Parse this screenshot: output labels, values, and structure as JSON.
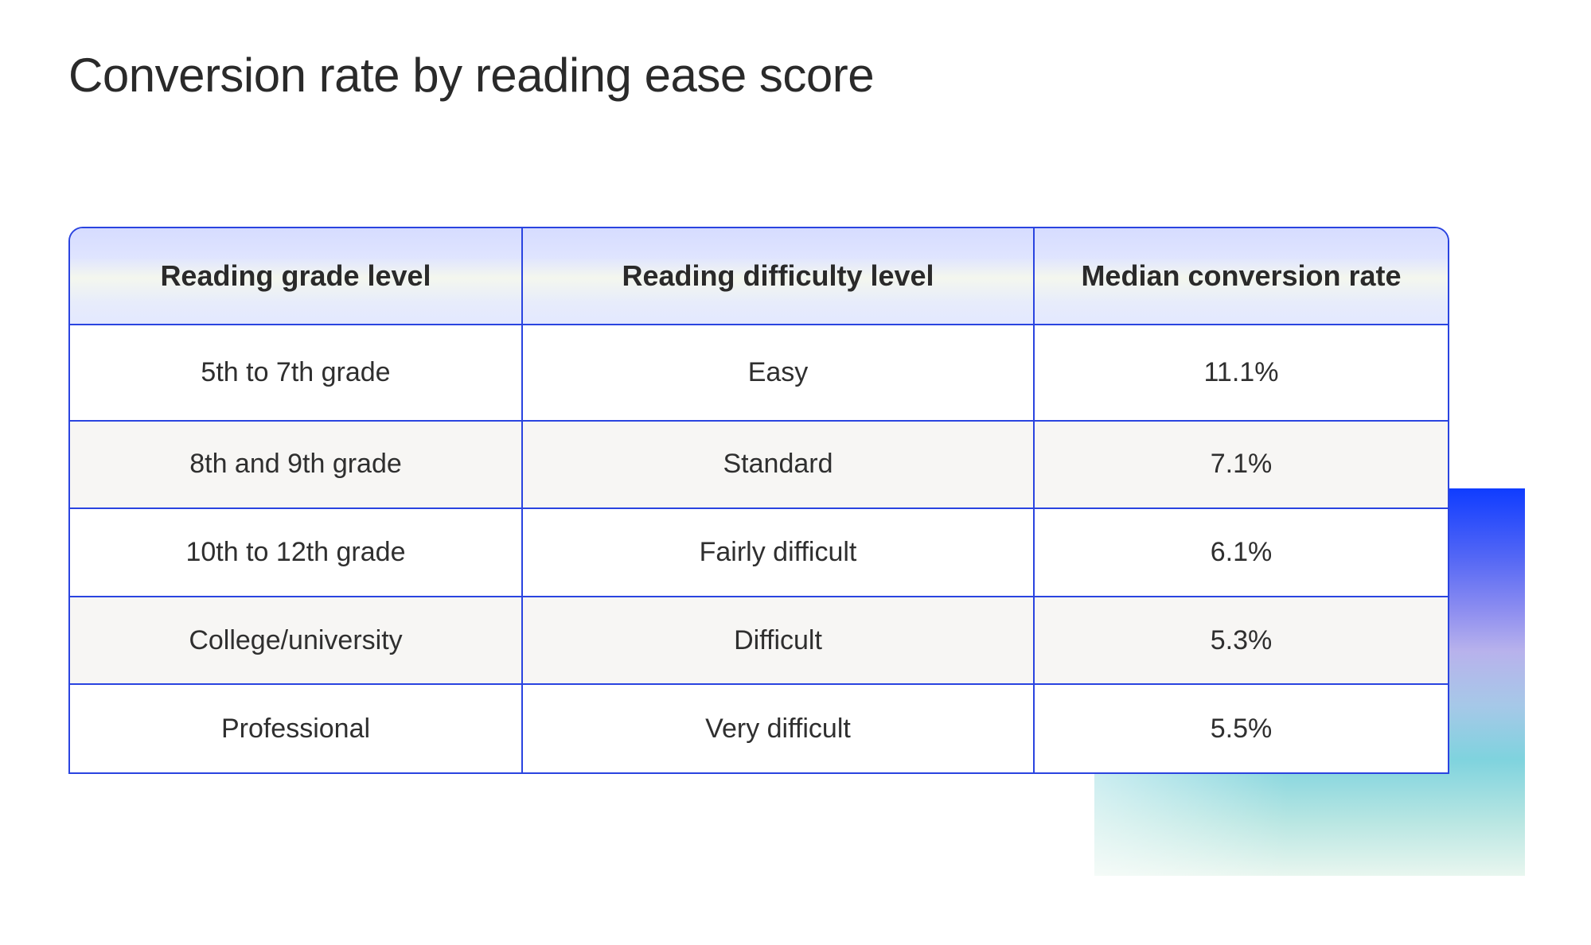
{
  "title": "Conversion rate by reading ease score",
  "chart_data": {
    "type": "table",
    "title": "Conversion rate by reading ease score",
    "columns": [
      "Reading grade level",
      "Reading difficulty level",
      "Median conversion rate"
    ],
    "rows": [
      [
        "5th to 7th grade",
        "Easy",
        "11.1%"
      ],
      [
        "8th and 9th grade",
        "Standard",
        "7.1%"
      ],
      [
        "10th to 12th grade",
        "Fairly difficult",
        "6.1%"
      ],
      [
        "College/university",
        "Difficult",
        "5.3%"
      ],
      [
        "Professional",
        "Very difficult",
        "5.5%"
      ]
    ],
    "values": [
      11.1,
      7.1,
      6.1,
      5.3,
      5.5
    ]
  },
  "colors": {
    "border": "#2a44e0",
    "header_tint": "#dfe4ff",
    "alt_row": "#f7f6f4",
    "accent": "#0f3cff"
  }
}
